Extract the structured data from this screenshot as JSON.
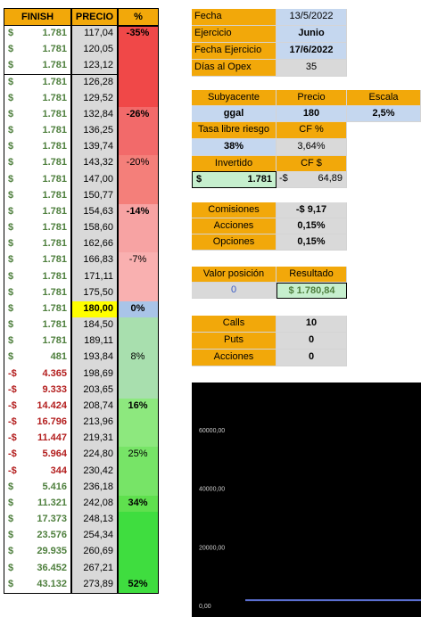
{
  "table": {
    "headers": {
      "finish": "FINISH",
      "precio": "PRECIO",
      "pct": "%"
    },
    "rows": [
      {
        "sign": "$",
        "finish": "1.781",
        "neg": false,
        "precio": "117,04",
        "pct": "-35%",
        "color": "#f04848"
      },
      {
        "sign": "$",
        "finish": "1.781",
        "neg": false,
        "precio": "120,05",
        "pct": "",
        "color": "#f04848"
      },
      {
        "sign": "$",
        "finish": "1.781",
        "neg": false,
        "precio": "123,12",
        "pct": "",
        "color": "#f04848"
      },
      {
        "sign": "$",
        "finish": "1.781",
        "neg": false,
        "precio": "126,28",
        "pct": "",
        "color": "#f04848"
      },
      {
        "sign": "$",
        "finish": "1.781",
        "neg": false,
        "precio": "129,52",
        "pct": "",
        "color": "#f04848"
      },
      {
        "sign": "$",
        "finish": "1.781",
        "neg": false,
        "precio": "132,84",
        "pct": "-26%",
        "color": "#f26a6a"
      },
      {
        "sign": "$",
        "finish": "1.781",
        "neg": false,
        "precio": "136,25",
        "pct": "",
        "color": "#f26a6a"
      },
      {
        "sign": "$",
        "finish": "1.781",
        "neg": false,
        "precio": "139,74",
        "pct": "",
        "color": "#f26a6a"
      },
      {
        "sign": "$",
        "finish": "1.781",
        "neg": false,
        "precio": "143,32",
        "pct": "-20%",
        "color": "#f47f7a"
      },
      {
        "sign": "$",
        "finish": "1.781",
        "neg": false,
        "precio": "147,00",
        "pct": "",
        "color": "#f47f7a"
      },
      {
        "sign": "$",
        "finish": "1.781",
        "neg": false,
        "precio": "150,77",
        "pct": "",
        "color": "#f47f7a"
      },
      {
        "sign": "$",
        "finish": "1.781",
        "neg": false,
        "precio": "154,63",
        "pct": "-14%",
        "color": "#f7a3a3"
      },
      {
        "sign": "$",
        "finish": "1.781",
        "neg": false,
        "precio": "158,60",
        "pct": "",
        "color": "#f7a3a3"
      },
      {
        "sign": "$",
        "finish": "1.781",
        "neg": false,
        "precio": "162,66",
        "pct": "",
        "color": "#f7a3a3"
      },
      {
        "sign": "$",
        "finish": "1.781",
        "neg": false,
        "precio": "166,83",
        "pct": "-7%",
        "color": "#f9b0b0"
      },
      {
        "sign": "$",
        "finish": "1.781",
        "neg": false,
        "precio": "171,11",
        "pct": "",
        "color": "#f9b0b0"
      },
      {
        "sign": "$",
        "finish": "1.781",
        "neg": false,
        "precio": "175,50",
        "pct": "",
        "color": "#f9b0b0"
      },
      {
        "sign": "$",
        "finish": "1.781",
        "neg": false,
        "precio": "180,00",
        "pct": "0%",
        "color": "#a9c4e8"
      },
      {
        "sign": "$",
        "finish": "1.781",
        "neg": false,
        "precio": "184,50",
        "pct": "",
        "color": "#a8dfae"
      },
      {
        "sign": "$",
        "finish": "1.781",
        "neg": false,
        "precio": "189,11",
        "pct": "",
        "color": "#a8dfae"
      },
      {
        "sign": "$",
        "finish": "481",
        "neg": false,
        "precio": "193,84",
        "pct": "8%",
        "color": "#a8dfae"
      },
      {
        "sign": "-$",
        "finish": "4.365",
        "neg": true,
        "precio": "198,69",
        "pct": "",
        "color": "#a8dfae"
      },
      {
        "sign": "-$",
        "finish": "9.333",
        "neg": true,
        "precio": "203,65",
        "pct": "",
        "color": "#a8dfae"
      },
      {
        "sign": "-$",
        "finish": "14.424",
        "neg": true,
        "precio": "208,74",
        "pct": "16%",
        "color": "#8de87e"
      },
      {
        "sign": "-$",
        "finish": "16.796",
        "neg": true,
        "precio": "213,96",
        "pct": "",
        "color": "#8de87e"
      },
      {
        "sign": "-$",
        "finish": "11.447",
        "neg": true,
        "precio": "219,31",
        "pct": "",
        "color": "#8de87e"
      },
      {
        "sign": "-$",
        "finish": "5.964",
        "neg": true,
        "precio": "224,80",
        "pct": "25%",
        "color": "#77e467"
      },
      {
        "sign": "-$",
        "finish": "344",
        "neg": true,
        "precio": "230,42",
        "pct": "",
        "color": "#77e467"
      },
      {
        "sign": "$",
        "finish": "5.416",
        "neg": false,
        "precio": "236,18",
        "pct": "",
        "color": "#77e467"
      },
      {
        "sign": "$",
        "finish": "11.321",
        "neg": false,
        "precio": "242,08",
        "pct": "34%",
        "color": "#5fe04e"
      },
      {
        "sign": "$",
        "finish": "17.373",
        "neg": false,
        "precio": "248,13",
        "pct": "",
        "color": "#3fdd3f"
      },
      {
        "sign": "$",
        "finish": "23.576",
        "neg": false,
        "precio": "254,34",
        "pct": "",
        "color": "#3fdd3f"
      },
      {
        "sign": "$",
        "finish": "29.935",
        "neg": false,
        "precio": "260,69",
        "pct": "",
        "color": "#3fdd3f"
      },
      {
        "sign": "$",
        "finish": "36.452",
        "neg": false,
        "precio": "267,21",
        "pct": "",
        "color": "#3fdd3f"
      },
      {
        "sign": "$",
        "finish": "43.132",
        "neg": false,
        "precio": "273,89",
        "pct": "52%",
        "color": "#3fdd3f"
      }
    ]
  },
  "info": {
    "fecha_label": "Fecha",
    "fecha_value": "13/5/2022",
    "ejercicio_label": "Ejercicio",
    "ejercicio_value": "Junio",
    "fecha_ej_label": "Fecha Ejercicio",
    "fecha_ej_value": "17/6/2022",
    "dias_label": "Días al Opex",
    "dias_value": "35"
  },
  "params": {
    "subyacente_label": "Subyacente",
    "precio_label": "Precio",
    "escala_label": "Escala",
    "subyacente_value": "ggal",
    "precio_value": "180",
    "escala_value": "2,5%",
    "tasa_label": "Tasa libre riesgo",
    "cf_pct_label": "CF %",
    "tasa_value": "38%",
    "cf_pct_value": "3,64%",
    "invertido_label": "Invertido",
    "cf_usd_label": "CF $",
    "invertido_sign": "$",
    "invertido_value": "1.781",
    "cf_usd_sign": "-$",
    "cf_usd_value": "64,89"
  },
  "costs": {
    "comisiones_label": "Comisiones",
    "comisiones_value": "-$ 9,17",
    "acciones_label": "Acciones",
    "acciones_value": "0,15%",
    "opciones_label": "Opciones",
    "opciones_value": "0,15%"
  },
  "position": {
    "valor_label": "Valor posición",
    "resultado_label": "Resultado",
    "valor_value": "0",
    "resultado_value": "$ 1.780,84"
  },
  "counts": {
    "calls_label": "Calls",
    "calls_value": "10",
    "puts_label": "Puts",
    "puts_value": "0",
    "acciones_label": "Acciones",
    "acciones_value": "0"
  },
  "chart_data": {
    "type": "line",
    "title": "",
    "xlabel": "",
    "ylabel": "",
    "ylim": [
      0,
      70000
    ],
    "yticks": [
      "0,00",
      "20000,00",
      "40000,00",
      "60000,00"
    ],
    "ytick_values": [
      0,
      20000,
      40000,
      60000
    ],
    "series_color": "#5b6fd1",
    "background": "#000000",
    "series": [
      {
        "values": [
          1781,
          1781
        ]
      }
    ]
  }
}
